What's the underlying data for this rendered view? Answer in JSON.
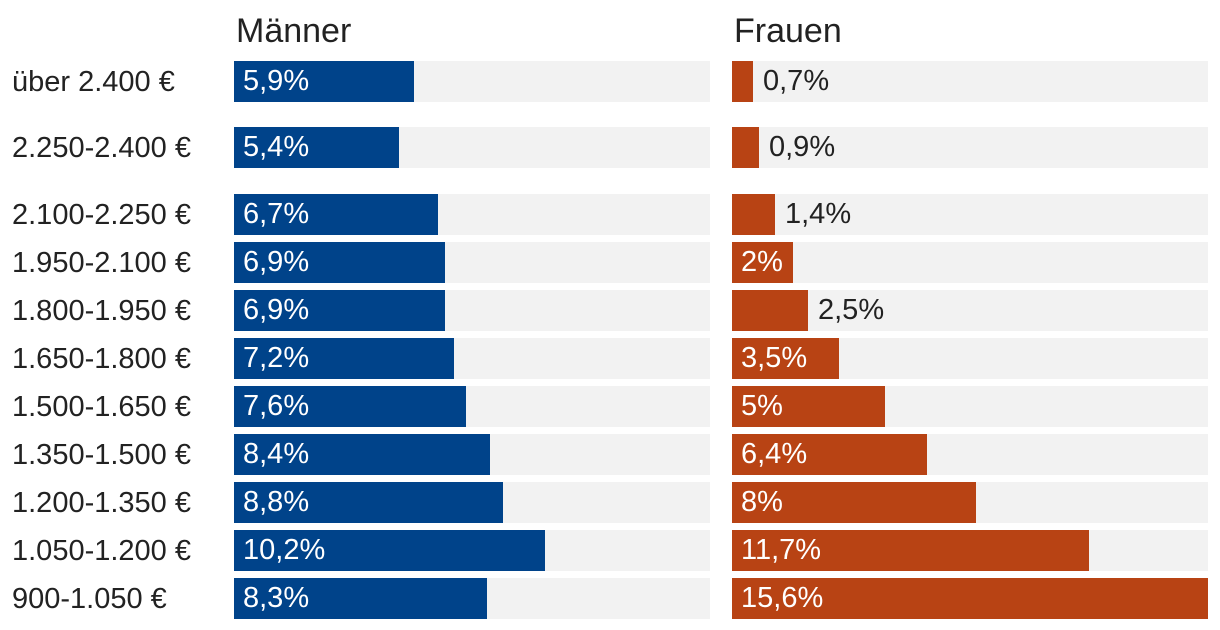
{
  "chart_data": {
    "type": "bar",
    "orientation": "horizontal",
    "layout": "side-by-side panels",
    "value_format": "percent, decimal comma",
    "categories": [
      "über 2.400 €",
      "2.250-2.400 €",
      "2.100-2.250 €",
      "1.950-2.100 €",
      "1.800-1.950 €",
      "1.650-1.800 €",
      "1.500-1.650 €",
      "1.350-1.500 €",
      "1.200-1.350 €",
      "1.050-1.200 €",
      "900-1.050 €"
    ],
    "xlim": [
      0,
      15.6
    ],
    "series": [
      {
        "name": "Männer",
        "color": "#00438a",
        "values": [
          5.9,
          5.4,
          6.7,
          6.9,
          6.9,
          7.2,
          7.6,
          8.4,
          8.8,
          10.2,
          8.3
        ],
        "labels": [
          "5,9%",
          "5,4%",
          "6,7%",
          "6,9%",
          "6,9%",
          "7,2%",
          "7,6%",
          "8,4%",
          "8,8%",
          "10,2%",
          "8,3%"
        ]
      },
      {
        "name": "Frauen",
        "color": "#b84314",
        "values": [
          0.7,
          0.9,
          1.4,
          2.0,
          2.5,
          3.5,
          5.0,
          6.4,
          8.0,
          11.7,
          15.6
        ],
        "labels": [
          "0,7%",
          "0,9%",
          "1,4%",
          "2%",
          "2,5%",
          "3,5%",
          "5%",
          "6,4%",
          "8%",
          "11,7%",
          "15,6%"
        ]
      }
    ],
    "track_color": "#f2f2f2"
  }
}
